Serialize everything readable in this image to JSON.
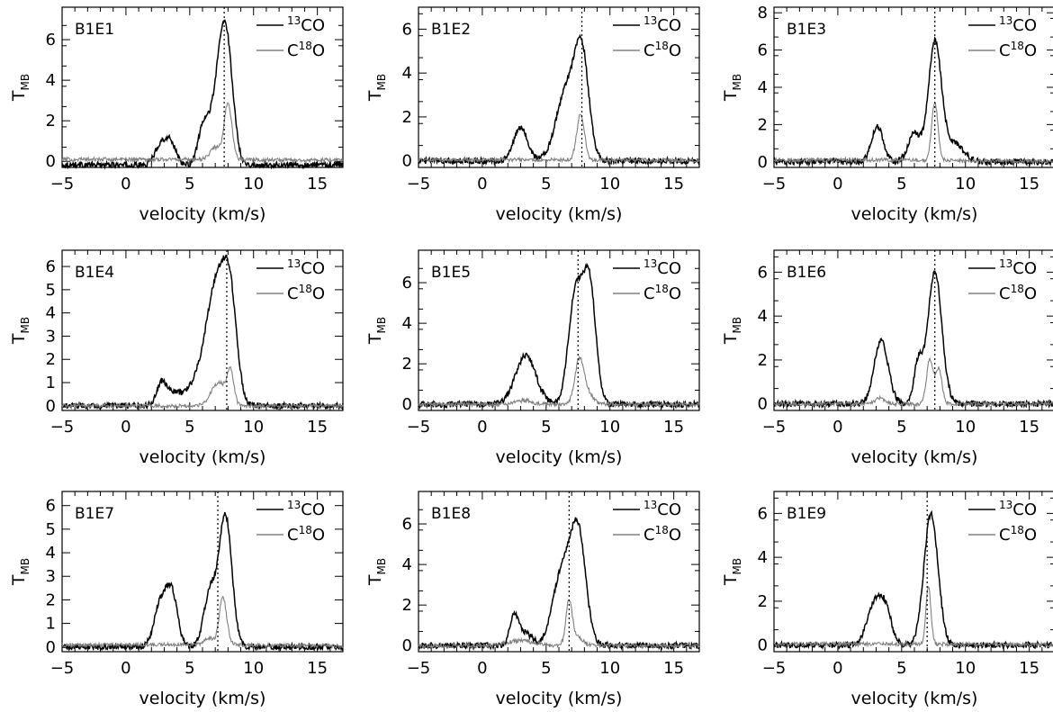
{
  "figure": {
    "line_colors": {
      "co13": "#000000",
      "c18o": "#808080",
      "frame": "#000000"
    }
  },
  "chart_data": [
    {
      "type": "line",
      "title": "B1E1",
      "xlabel": "velocity (km/s)",
      "ylabel": "T_MB",
      "xlim": [
        -5,
        17
      ],
      "ylim": [
        -0.3,
        7.6
      ],
      "yticks": [
        0,
        2,
        4,
        6
      ],
      "xticks": [
        -5,
        0,
        5,
        10,
        15
      ],
      "vline": 7.7,
      "legend": {
        "placement": "top-right",
        "entries": [
          "13CO",
          "C18O"
        ]
      },
      "series": [
        {
          "name": "13CO",
          "components": [
            [
              -0.2,
              5.0,
              15.0
            ],
            [
              1.1,
              2.8,
              0.5
            ],
            [
              0.9,
              3.6,
              0.4
            ],
            [
              1.4,
              6.0,
              0.4
            ],
            [
              2.0,
              6.9,
              0.6
            ],
            [
              6.4,
              7.8,
              0.55
            ]
          ]
        },
        {
          "name": "C18O",
          "components": [
            [
              0.1,
              0.0,
              15.0
            ],
            [
              0.6,
              7.0,
              0.4
            ],
            [
              2.8,
              8.0,
              0.3
            ]
          ]
        }
      ]
    },
    {
      "type": "line",
      "title": "B1E2",
      "xlabel": "velocity (km/s)",
      "ylabel": "T_MB",
      "xlim": [
        -5,
        17
      ],
      "ylim": [
        -0.3,
        7.0
      ],
      "yticks": [
        0,
        2,
        4,
        6
      ],
      "xticks": [
        -5,
        0,
        5,
        10,
        15
      ],
      "vline": 7.8,
      "legend": {
        "placement": "top-right",
        "entries": [
          "13CO",
          "C18O"
        ]
      },
      "series": [
        {
          "name": "13CO",
          "components": [
            [
              1.5,
              3.0,
              0.55
            ],
            [
              3.2,
              6.6,
              0.8
            ],
            [
              4.5,
              7.8,
              0.55
            ]
          ]
        },
        {
          "name": "C18O",
          "components": [
            [
              0.05,
              2.0,
              10.0
            ],
            [
              2.1,
              7.7,
              0.3
            ]
          ]
        }
      ]
    },
    {
      "type": "line",
      "title": "B1E3",
      "xlabel": "velocity (km/s)",
      "ylabel": "T_MB",
      "xlim": [
        -5,
        17
      ],
      "ylim": [
        -0.3,
        8.3
      ],
      "yticks": [
        0,
        2,
        4,
        6,
        8
      ],
      "xticks": [
        -5,
        0,
        5,
        10,
        15
      ],
      "vline": 7.6,
      "legend": {
        "placement": "top-right",
        "entries": [
          "13CO",
          "C18O"
        ]
      },
      "series": [
        {
          "name": "13CO",
          "components": [
            [
              1.9,
              3.1,
              0.45
            ],
            [
              1.5,
              6.0,
              0.5
            ],
            [
              6.3,
              7.6,
              0.5
            ],
            [
              1.0,
              9.0,
              0.8
            ]
          ]
        },
        {
          "name": "C18O",
          "components": [
            [
              0.1,
              0.0,
              10.0
            ],
            [
              3.1,
              7.6,
              0.25
            ]
          ]
        }
      ]
    },
    {
      "type": "line",
      "title": "B1E4",
      "xlabel": "velocity (km/s)",
      "ylabel": "T_MB",
      "xlim": [
        -5,
        17
      ],
      "ylim": [
        -0.2,
        6.7
      ],
      "yticks": [
        0,
        1,
        2,
        3,
        4,
        5,
        6
      ],
      "xticks": [
        -5,
        0,
        5,
        10,
        15
      ],
      "vline": 7.9,
      "legend": {
        "placement": "top-right",
        "entries": [
          "13CO",
          "C18O"
        ]
      },
      "series": [
        {
          "name": "13CO",
          "components": [
            [
              1.0,
              2.8,
              0.4
            ],
            [
              0.5,
              3.8,
              0.5
            ],
            [
              0.8,
              5.5,
              0.8
            ],
            [
              5.4,
              7.2,
              0.85
            ],
            [
              3.0,
              8.2,
              0.5
            ]
          ]
        },
        {
          "name": "C18O",
          "components": [
            [
              1.0,
              7.3,
              0.6
            ],
            [
              1.3,
              8.2,
              0.25
            ]
          ]
        }
      ]
    },
    {
      "type": "line",
      "title": "B1E5",
      "xlabel": "velocity (km/s)",
      "ylabel": "T_MB",
      "xlim": [
        -5,
        17
      ],
      "ylim": [
        -0.3,
        7.6
      ],
      "yticks": [
        0,
        2,
        4,
        6
      ],
      "xticks": [
        -5,
        0,
        5,
        10,
        15
      ],
      "vline": 7.5,
      "legend": {
        "placement": "top-right",
        "entries": [
          "13CO",
          "C18O"
        ]
      },
      "series": [
        {
          "name": "13CO",
          "components": [
            [
              2.4,
              3.4,
              0.8
            ],
            [
              5.4,
              7.3,
              0.55
            ],
            [
              5.8,
              8.4,
              0.5
            ]
          ]
        },
        {
          "name": "C18O",
          "components": [
            [
              0.2,
              3.3,
              0.6
            ],
            [
              2.2,
              7.6,
              0.35
            ],
            [
              0.5,
              8.3,
              0.4
            ]
          ]
        }
      ]
    },
    {
      "type": "line",
      "title": "B1E6",
      "xlabel": "velocity (km/s)",
      "ylabel": "T_MB",
      "xlim": [
        -5,
        17
      ],
      "ylim": [
        -0.3,
        7.0
      ],
      "yticks": [
        0,
        2,
        4,
        6
      ],
      "xticks": [
        -5,
        0,
        5,
        10,
        15
      ],
      "vline": 7.6,
      "legend": {
        "placement": "top-right",
        "entries": [
          "13CO",
          "C18O"
        ]
      },
      "series": [
        {
          "name": "13CO",
          "components": [
            [
              2.9,
              3.4,
              0.55
            ],
            [
              1.8,
              6.3,
              0.35
            ],
            [
              6.0,
              7.6,
              0.55
            ]
          ]
        },
        {
          "name": "C18O",
          "components": [
            [
              0.25,
              3.3,
              0.4
            ],
            [
              2.0,
              7.2,
              0.25
            ],
            [
              1.6,
              7.9,
              0.25
            ]
          ]
        }
      ]
    },
    {
      "type": "line",
      "title": "B1E7",
      "xlabel": "velocity (km/s)",
      "ylabel": "T_MB",
      "xlim": [
        -5,
        17
      ],
      "ylim": [
        -0.2,
        6.6
      ],
      "yticks": [
        0,
        1,
        2,
        3,
        4,
        5,
        6
      ],
      "xticks": [
        -5,
        0,
        5,
        10,
        15
      ],
      "vline": 7.2,
      "legend": {
        "placement": "top-right",
        "entries": [
          "13CO",
          "C18O"
        ]
      },
      "series": [
        {
          "name": "13CO",
          "components": [
            [
              1.8,
              2.7,
              0.5
            ],
            [
              2.2,
              3.6,
              0.45
            ],
            [
              2.3,
              6.6,
              0.5
            ],
            [
              5.5,
              7.8,
              0.5
            ]
          ]
        },
        {
          "name": "C18O",
          "components": [
            [
              0.1,
              3.0,
              10.0
            ],
            [
              0.3,
              6.5,
              0.3
            ],
            [
              2.0,
              7.6,
              0.3
            ]
          ]
        }
      ]
    },
    {
      "type": "line",
      "title": "B1E8",
      "xlabel": "velocity (km/s)",
      "ylabel": "T_MB",
      "xlim": [
        -5,
        17
      ],
      "ylim": [
        -0.3,
        7.6
      ],
      "yticks": [
        0,
        2,
        4,
        6
      ],
      "xticks": [
        -5,
        0,
        5,
        10,
        15
      ],
      "vline": 6.8,
      "legend": {
        "placement": "top-right",
        "entries": [
          "13CO",
          "C18O"
        ]
      },
      "series": [
        {
          "name": "13CO",
          "components": [
            [
              1.4,
              2.5,
              0.35
            ],
            [
              0.6,
              3.4,
              0.5
            ],
            [
              3.5,
              6.2,
              0.7
            ],
            [
              5.5,
              7.5,
              0.6
            ]
          ]
        },
        {
          "name": "C18O",
          "components": [
            [
              0.25,
              3.0,
              1.0
            ],
            [
              2.2,
              6.8,
              0.25
            ],
            [
              0.4,
              7.5,
              0.4
            ]
          ]
        }
      ]
    },
    {
      "type": "line",
      "title": "B1E9",
      "xlabel": "velocity (km/s)",
      "ylabel": "T_MB",
      "xlim": [
        -5,
        17
      ],
      "ylim": [
        -0.3,
        7.0
      ],
      "yticks": [
        0,
        2,
        4,
        6
      ],
      "xticks": [
        -5,
        0,
        5,
        10,
        15
      ],
      "vline": 7.0,
      "legend": {
        "placement": "top-right",
        "entries": [
          "13CO",
          "C18O"
        ]
      },
      "series": [
        {
          "name": "13CO",
          "components": [
            [
              1.7,
              2.8,
              0.55
            ],
            [
              1.6,
              3.7,
              0.5
            ],
            [
              6.0,
              7.3,
              0.55
            ]
          ]
        },
        {
          "name": "C18O",
          "components": [
            [
              0.05,
              2.0,
              10.0
            ],
            [
              2.6,
              7.1,
              0.2
            ]
          ]
        }
      ]
    }
  ]
}
